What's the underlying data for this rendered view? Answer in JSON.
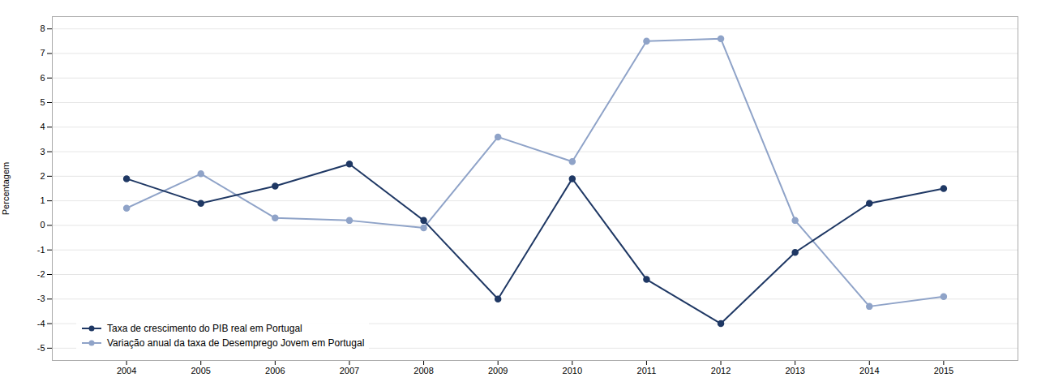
{
  "chart_data": {
    "type": "line",
    "x": [
      2004,
      2005,
      2006,
      2007,
      2008,
      2009,
      2010,
      2011,
      2012,
      2013,
      2014,
      2015
    ],
    "xlim": [
      2003,
      2016
    ],
    "xticks": [
      2004,
      2005,
      2006,
      2007,
      2008,
      2009,
      2010,
      2011,
      2012,
      2013,
      2014,
      2015
    ],
    "ylim": [
      -5.5,
      8.5
    ],
    "yticks": [
      -5,
      -4,
      -3,
      -2,
      -1,
      0,
      1,
      2,
      3,
      4,
      5,
      6,
      7,
      8
    ],
    "ylabel": "Percentagem",
    "grid": true,
    "legend": "lower left",
    "series": [
      {
        "name": "Taxa de crescimento do PIB real em Portugal",
        "color": "#1f3864",
        "marker": "circle",
        "values": [
          1.9,
          0.9,
          1.6,
          2.5,
          0.2,
          -3.0,
          1.9,
          -2.2,
          -4.0,
          -1.1,
          0.9,
          1.5
        ]
      },
      {
        "name": "Variação anual da taxa de Desemprego Jovem em Portugal",
        "color": "#8fa3c8",
        "marker": "circle",
        "values": [
          0.7,
          2.1,
          0.3,
          0.2,
          -0.1,
          3.6,
          2.6,
          7.5,
          7.6,
          0.2,
          -3.3,
          -2.9
        ]
      }
    ]
  }
}
